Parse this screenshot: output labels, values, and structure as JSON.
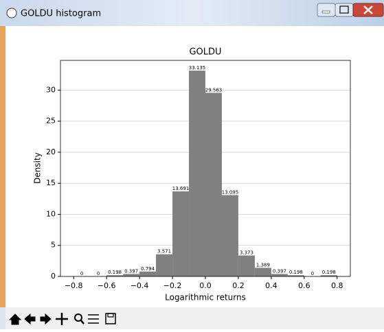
{
  "window": {
    "title": "GOLDU histogram"
  },
  "chart_data": {
    "type": "histogram",
    "title": "GOLDU",
    "x_label": "Logarithmic returns",
    "y_label": "Density",
    "bins": [
      -0.8,
      -0.7,
      -0.6,
      -0.5,
      -0.4,
      -0.3,
      -0.2,
      -0.1,
      0.0,
      0.1,
      0.2,
      0.3,
      0.4,
      0.5,
      0.6,
      0.7,
      0.8
    ],
    "values": [
      0,
      0,
      0.198,
      0.397,
      0.794,
      3.571,
      13.691,
      33.135,
      29.563,
      13.095,
      3.373,
      1.389,
      0.397,
      0.198,
      0,
      0.198
    ],
    "color": "#808080",
    "xlim": [
      -0.88,
      0.88
    ],
    "xticks": [
      {
        "value": -0.8,
        "label": "−0.8"
      },
      {
        "value": -0.6,
        "label": "−0.6"
      },
      {
        "value": -0.4,
        "label": "−0.4"
      },
      {
        "value": -0.2,
        "label": "−0.2"
      },
      {
        "value": 0.0,
        "label": "0.0"
      },
      0.2,
      0.4,
      0.6,
      0.8
    ],
    "ylim": [
      0,
      34.79
    ],
    "yticks": [
      0,
      5,
      10,
      15,
      20,
      25,
      30
    ],
    "grid": true
  }
}
